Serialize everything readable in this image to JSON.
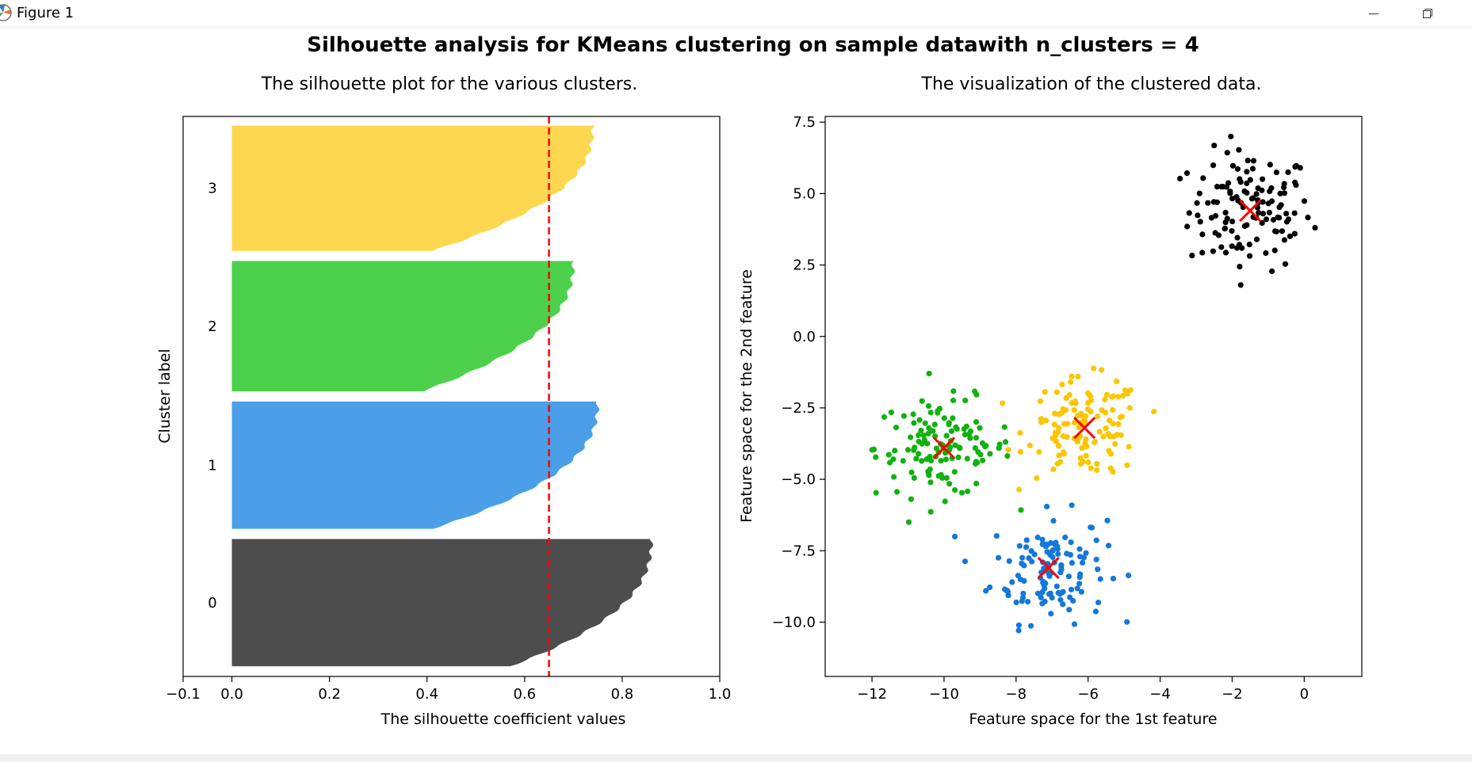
{
  "window": {
    "title": "Figure 1",
    "icon": "matplotlib-icon",
    "controls": [
      "minimize-icon",
      "restore-icon"
    ]
  },
  "suptitle": "Silhouette analysis for KMeans clustering on sample datawith n_clusters = 4",
  "chart_data": [
    {
      "type": "bar",
      "subtype": "horizontal-silhouette",
      "title": "The silhouette plot for the various clusters.",
      "xlabel": "The silhouette coefficient values",
      "ylabel": "Cluster label",
      "xlim": [
        -0.1,
        1.0
      ],
      "ylim": [
        0,
        550
      ],
      "xticks": [
        -0.1,
        0.0,
        0.2,
        0.4,
        0.6,
        0.8,
        1.0
      ],
      "xtick_labels": [
        "−0.1",
        "0.0",
        "0.2",
        "0.4",
        "0.6",
        "0.8",
        "1.0"
      ],
      "average_silhouette": 0.65,
      "average_line_color": "#ff0000",
      "clusters": [
        {
          "label": "0",
          "color": "#4d4d4d",
          "y_lower": 10,
          "y_upper": 135,
          "min": 0.57,
          "max": 0.86
        },
        {
          "label": "1",
          "color": "#4b9fe8",
          "y_lower": 145,
          "y_upper": 270,
          "min": 0.41,
          "max": 0.75
        },
        {
          "label": "2",
          "color": "#4dd14d",
          "y_lower": 280,
          "y_upper": 408,
          "min": 0.39,
          "max": 0.7
        },
        {
          "label": "3",
          "color": "#fdd750",
          "y_lower": 418,
          "y_upper": 541,
          "min": 0.41,
          "max": 0.74
        }
      ]
    },
    {
      "type": "scatter",
      "title": "The visualization of the clustered data.",
      "xlabel": "Feature space for the 1st feature",
      "ylabel": "Feature space for the 2nd feature",
      "xlim": [
        -13.3,
        1.6
      ],
      "ylim": [
        -11.9,
        7.7
      ],
      "xticks": [
        -12,
        -10,
        -8,
        -6,
        -4,
        -2,
        0
      ],
      "xtick_labels": [
        "−12",
        "−10",
        "−8",
        "−6",
        "−4",
        "−2",
        "0"
      ],
      "yticks": [
        -10.0,
        -7.5,
        -5.0,
        -2.5,
        0.0,
        2.5,
        5.0,
        7.5
      ],
      "ytick_labels": [
        "−10.0",
        "−7.5",
        "−5.0",
        "−2.5",
        "0.0",
        "2.5",
        "5.0",
        "7.5"
      ],
      "clusters": [
        {
          "label": "0",
          "color": "#000000",
          "center": [
            -1.5,
            4.4
          ],
          "n": 125,
          "spread": [
            0.85,
            1.05
          ]
        },
        {
          "label": "1",
          "color": "#1577d8",
          "center": [
            -7.1,
            -8.1
          ],
          "n": 125,
          "spread": [
            0.8,
            0.95
          ]
        },
        {
          "label": "2",
          "color": "#10b110",
          "center": [
            -10.0,
            -3.9
          ],
          "n": 128,
          "spread": [
            0.95,
            0.85
          ]
        },
        {
          "label": "3",
          "color": "#fbc600",
          "center": [
            -6.1,
            -3.2
          ],
          "n": 123,
          "spread": [
            0.8,
            0.85
          ]
        }
      ],
      "center_marker_color": "#ff0000"
    }
  ]
}
